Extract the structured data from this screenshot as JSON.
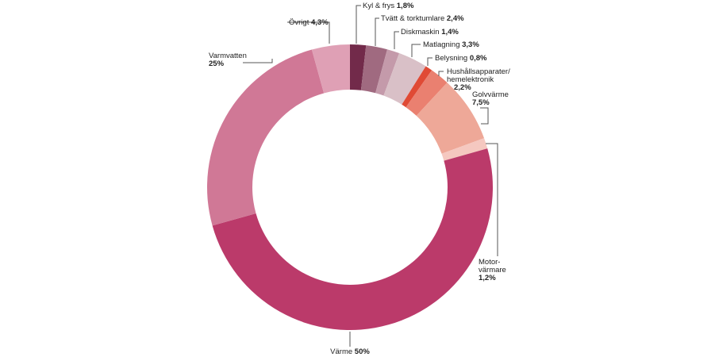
{
  "chart_data": {
    "type": "pie",
    "donut": true,
    "slices": [
      {
        "label": "Kyl & frys",
        "value": 1.8,
        "display": "1,8%",
        "color": "#722a4a"
      },
      {
        "label": "Tvätt & torktumlare",
        "value": 2.4,
        "display": "2,4%",
        "color": "#a06a80"
      },
      {
        "label": "Diskmaskin",
        "value": 1.4,
        "display": "1,4%",
        "color": "#c49aaa"
      },
      {
        "label": "Matlagning",
        "value": 3.3,
        "display": "3,3%",
        "color": "#d9c0c7"
      },
      {
        "label": "Belysning",
        "value": 0.8,
        "display": "0,8%",
        "color": "#e04a35"
      },
      {
        "label": "Hushållsapparater/ hemelektronik",
        "value": 2.2,
        "display": "2,2%",
        "color": "#ea8070"
      },
      {
        "label": "Golvvärme",
        "value": 7.5,
        "display": "7,5%",
        "color": "#eea898"
      },
      {
        "label": "Motor- värmare",
        "value": 1.2,
        "display": "1,2%",
        "color": "#f5c8c0"
      },
      {
        "label": "Värme",
        "value": 50,
        "display": "50%",
        "color": "#bb3a6a"
      },
      {
        "label": "Varmvatten",
        "value": 25,
        "display": "25%",
        "color": "#d07896"
      },
      {
        "label": "Övrigt",
        "value": 4.3,
        "display": "4,3%",
        "color": "#dfa0b5"
      }
    ]
  }
}
